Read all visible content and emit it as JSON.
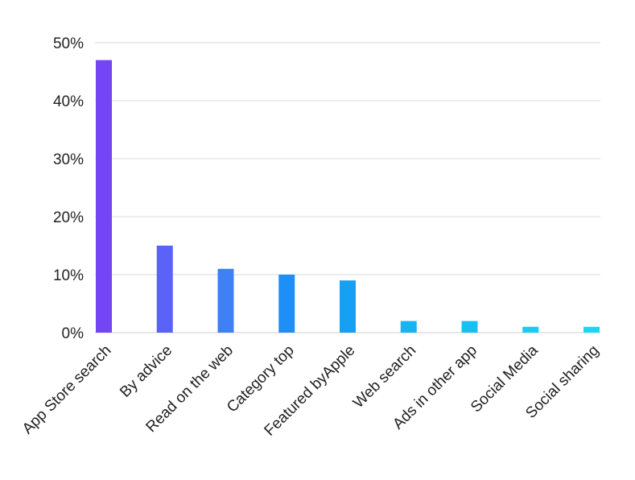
{
  "chart_data": {
    "type": "bar",
    "categories": [
      "App Store search",
      "By advice",
      "Read on the web",
      "Category top",
      "Featured byApple",
      "Web search",
      "Ads in other app",
      "Social Media",
      "Social sharing"
    ],
    "values": [
      47,
      15,
      11,
      10,
      9,
      2,
      2,
      1,
      1
    ],
    "y_ticks": [
      "0%",
      "10%",
      "20%",
      "30%",
      "40%",
      "50%"
    ],
    "ylim": [
      0,
      50
    ],
    "grid": true,
    "bar_colors": [
      "#7345f5",
      "#5a62f7",
      "#3f80f6",
      "#1e8ff7",
      "#16a0f5",
      "#18b3f3",
      "#17c0f3",
      "#16cdf3",
      "#16d8f3"
    ],
    "grid_color": "#d9d9d9",
    "axis_color": "#cccccc"
  }
}
